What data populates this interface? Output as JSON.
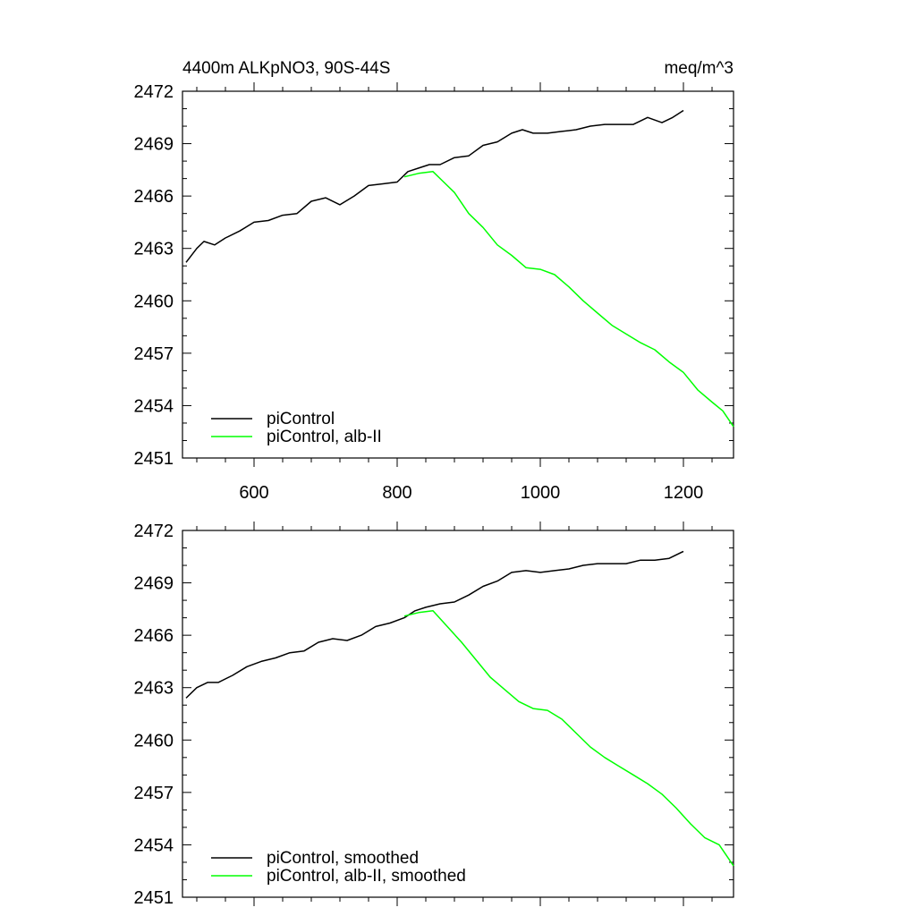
{
  "chart_data": [
    {
      "type": "line",
      "title": "4400m ALKpNO3, 90S-44S",
      "units": "meq/m^3",
      "xlim": [
        500,
        1270
      ],
      "ylim": [
        2451,
        2472
      ],
      "x_ticks": [
        600,
        800,
        1000,
        1200
      ],
      "x_tick_labels": [
        "600",
        "800",
        "1000",
        "1200"
      ],
      "y_ticks": [
        2451,
        2454,
        2457,
        2460,
        2463,
        2466,
        2469,
        2472
      ],
      "y_tick_labels": [
        "2451",
        "2454",
        "2457",
        "2460",
        "2463",
        "2466",
        "2469",
        "2472"
      ],
      "legend_position": "bottom-left",
      "grid": false,
      "series": [
        {
          "name": "piControl",
          "color": "#000000",
          "x": [
            505,
            520,
            530,
            545,
            560,
            580,
            600,
            620,
            640,
            660,
            680,
            700,
            720,
            740,
            760,
            780,
            800,
            815,
            830,
            845,
            860,
            880,
            900,
            920,
            940,
            960,
            975,
            990,
            1010,
            1030,
            1050,
            1070,
            1090,
            1110,
            1130,
            1150,
            1170,
            1185,
            1200
          ],
          "y": [
            2462.2,
            2463.0,
            2463.4,
            2463.2,
            2463.6,
            2464.0,
            2464.5,
            2464.6,
            2464.9,
            2465.0,
            2465.7,
            2465.9,
            2465.5,
            2466.0,
            2466.6,
            2466.7,
            2466.8,
            2467.4,
            2467.6,
            2467.8,
            2467.8,
            2468.2,
            2468.3,
            2468.9,
            2469.1,
            2469.6,
            2469.8,
            2469.6,
            2469.6,
            2469.7,
            2469.8,
            2470.0,
            2470.1,
            2470.1,
            2470.1,
            2470.5,
            2470.2,
            2470.5,
            2470.9
          ]
        },
        {
          "name": "piControl, alb-II",
          "color": "#00ff00",
          "x": [
            810,
            830,
            850,
            865,
            880,
            900,
            920,
            940,
            960,
            980,
            1000,
            1020,
            1040,
            1060,
            1080,
            1100,
            1120,
            1140,
            1160,
            1180,
            1200,
            1220,
            1240,
            1255,
            1270
          ],
          "y": [
            2467.1,
            2467.3,
            2467.4,
            2466.8,
            2466.2,
            2465.0,
            2464.2,
            2463.2,
            2462.6,
            2461.9,
            2461.8,
            2461.5,
            2460.8,
            2460.0,
            2459.3,
            2458.6,
            2458.1,
            2457.6,
            2457.2,
            2456.5,
            2455.9,
            2454.9,
            2454.2,
            2453.7,
            2452.8
          ]
        }
      ]
    },
    {
      "type": "line",
      "xlim": [
        500,
        1270
      ],
      "ylim": [
        2451,
        2472
      ],
      "x_ticks": [
        600,
        800,
        1000,
        1200
      ],
      "y_ticks": [
        2451,
        2454,
        2457,
        2460,
        2463,
        2466,
        2469,
        2472
      ],
      "y_tick_labels": [
        "2451",
        "2454",
        "2457",
        "2460",
        "2463",
        "2466",
        "2469",
        "2472"
      ],
      "legend_position": "bottom-left",
      "grid": false,
      "series": [
        {
          "name": "piControl, smoothed",
          "color": "#000000",
          "x": [
            505,
            520,
            535,
            550,
            570,
            590,
            610,
            630,
            650,
            670,
            690,
            710,
            730,
            750,
            770,
            790,
            810,
            825,
            840,
            860,
            880,
            900,
            920,
            940,
            960,
            980,
            1000,
            1020,
            1040,
            1060,
            1080,
            1100,
            1120,
            1140,
            1160,
            1180,
            1200
          ],
          "y": [
            2462.4,
            2463.0,
            2463.3,
            2463.3,
            2463.7,
            2464.2,
            2464.5,
            2464.7,
            2465.0,
            2465.1,
            2465.6,
            2465.8,
            2465.7,
            2466.0,
            2466.5,
            2466.7,
            2467.0,
            2467.4,
            2467.6,
            2467.8,
            2467.9,
            2468.3,
            2468.8,
            2469.1,
            2469.6,
            2469.7,
            2469.6,
            2469.7,
            2469.8,
            2470.0,
            2470.1,
            2470.1,
            2470.1,
            2470.3,
            2470.3,
            2470.4,
            2470.8
          ]
        },
        {
          "name": "piControl, alb-II, smoothed",
          "color": "#00ff00",
          "x": [
            810,
            830,
            850,
            870,
            890,
            910,
            930,
            950,
            970,
            990,
            1010,
            1030,
            1050,
            1070,
            1090,
            1110,
            1130,
            1150,
            1170,
            1190,
            1210,
            1230,
            1250,
            1270
          ],
          "y": [
            2467.1,
            2467.3,
            2467.4,
            2466.5,
            2465.6,
            2464.6,
            2463.6,
            2462.9,
            2462.2,
            2461.8,
            2461.7,
            2461.2,
            2460.4,
            2459.6,
            2459.0,
            2458.5,
            2458.0,
            2457.5,
            2456.9,
            2456.1,
            2455.2,
            2454.4,
            2454.0,
            2452.8
          ]
        }
      ]
    }
  ]
}
